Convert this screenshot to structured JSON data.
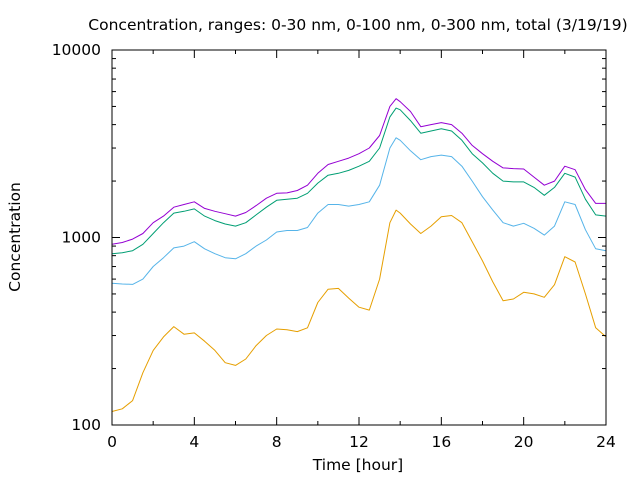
{
  "chart_data": {
    "type": "line",
    "title": "Concentration, ranges: 0-30 nm, 0-100 nm, 0-300 nm, total (3/19/19)",
    "xlabel": "Time [hour]",
    "ylabel": "Concentration",
    "xlim": [
      0,
      24
    ],
    "ylim": [
      100,
      10000
    ],
    "y_scale": "log",
    "x_ticks": [
      0,
      4,
      8,
      12,
      16,
      20,
      24
    ],
    "x_tick_labels": [
      "0",
      "4",
      "8",
      "12",
      "16",
      "20",
      "24"
    ],
    "y_major_ticks": [
      100,
      1000,
      10000
    ],
    "y_tick_labels": [
      "100",
      "1000",
      "10000"
    ],
    "grid": false,
    "legend": "none",
    "series": [
      {
        "color": "#e69f00",
        "points": [
          [
            0,
            118
          ],
          [
            0.5,
            122
          ],
          [
            1,
            135
          ],
          [
            1.5,
            190
          ],
          [
            2,
            250
          ],
          [
            2.5,
            295
          ],
          [
            3,
            335
          ],
          [
            3.5,
            305
          ],
          [
            4,
            310
          ],
          [
            4.5,
            280
          ],
          [
            5,
            250
          ],
          [
            5.5,
            215
          ],
          [
            6,
            208
          ],
          [
            6.5,
            225
          ],
          [
            7,
            265
          ],
          [
            7.5,
            300
          ],
          [
            8,
            325
          ],
          [
            8.5,
            322
          ],
          [
            9,
            315
          ],
          [
            9.5,
            330
          ],
          [
            10,
            450
          ],
          [
            10.5,
            530
          ],
          [
            11,
            535
          ],
          [
            11.5,
            475
          ],
          [
            12,
            425
          ],
          [
            12.5,
            410
          ],
          [
            13,
            600
          ],
          [
            13.5,
            1200
          ],
          [
            13.8,
            1400
          ],
          [
            14,
            1350
          ],
          [
            14.5,
            1180
          ],
          [
            15,
            1050
          ],
          [
            15.5,
            1150
          ],
          [
            16,
            1290
          ],
          [
            16.5,
            1310
          ],
          [
            17,
            1200
          ],
          [
            17.5,
            950
          ],
          [
            18,
            750
          ],
          [
            18.5,
            580
          ],
          [
            19,
            460
          ],
          [
            19.5,
            470
          ],
          [
            20,
            510
          ],
          [
            20.5,
            500
          ],
          [
            21,
            480
          ],
          [
            21.5,
            560
          ],
          [
            22,
            790
          ],
          [
            22.5,
            740
          ],
          [
            23,
            500
          ],
          [
            23.5,
            330
          ],
          [
            24,
            295
          ]
        ]
      },
      {
        "color": "#56b4e9",
        "points": [
          [
            0,
            570
          ],
          [
            0.5,
            565
          ],
          [
            1,
            562
          ],
          [
            1.5,
            600
          ],
          [
            2,
            700
          ],
          [
            2.5,
            780
          ],
          [
            3,
            880
          ],
          [
            3.5,
            900
          ],
          [
            4,
            950
          ],
          [
            4.5,
            870
          ],
          [
            5,
            820
          ],
          [
            5.5,
            780
          ],
          [
            6,
            770
          ],
          [
            6.5,
            820
          ],
          [
            7,
            900
          ],
          [
            7.5,
            970
          ],
          [
            8,
            1070
          ],
          [
            8.5,
            1090
          ],
          [
            9,
            1090
          ],
          [
            9.5,
            1130
          ],
          [
            10,
            1350
          ],
          [
            10.5,
            1500
          ],
          [
            11,
            1500
          ],
          [
            11.5,
            1470
          ],
          [
            12,
            1500
          ],
          [
            12.5,
            1550
          ],
          [
            13,
            1900
          ],
          [
            13.5,
            3000
          ],
          [
            13.8,
            3400
          ],
          [
            14,
            3300
          ],
          [
            14.5,
            2900
          ],
          [
            15,
            2600
          ],
          [
            15.5,
            2700
          ],
          [
            16,
            2750
          ],
          [
            16.5,
            2700
          ],
          [
            17,
            2400
          ],
          [
            17.5,
            2000
          ],
          [
            18,
            1650
          ],
          [
            18.5,
            1400
          ],
          [
            19,
            1200
          ],
          [
            19.5,
            1150
          ],
          [
            20,
            1190
          ],
          [
            20.5,
            1120
          ],
          [
            21,
            1030
          ],
          [
            21.5,
            1150
          ],
          [
            22,
            1550
          ],
          [
            22.5,
            1500
          ],
          [
            23,
            1100
          ],
          [
            23.5,
            870
          ],
          [
            24,
            850
          ]
        ]
      },
      {
        "color": "#009e73",
        "points": [
          [
            0,
            820
          ],
          [
            0.5,
            830
          ],
          [
            1,
            850
          ],
          [
            1.5,
            920
          ],
          [
            2,
            1050
          ],
          [
            2.5,
            1200
          ],
          [
            3,
            1350
          ],
          [
            3.5,
            1380
          ],
          [
            4,
            1420
          ],
          [
            4.5,
            1300
          ],
          [
            5,
            1230
          ],
          [
            5.5,
            1180
          ],
          [
            6,
            1150
          ],
          [
            6.5,
            1200
          ],
          [
            7,
            1320
          ],
          [
            7.5,
            1450
          ],
          [
            8,
            1580
          ],
          [
            8.5,
            1600
          ],
          [
            9,
            1620
          ],
          [
            9.5,
            1720
          ],
          [
            10,
            1950
          ],
          [
            10.5,
            2150
          ],
          [
            11,
            2200
          ],
          [
            11.5,
            2280
          ],
          [
            12,
            2400
          ],
          [
            12.5,
            2550
          ],
          [
            13,
            3000
          ],
          [
            13.5,
            4400
          ],
          [
            13.8,
            4900
          ],
          [
            14,
            4800
          ],
          [
            14.5,
            4200
          ],
          [
            15,
            3600
          ],
          [
            15.5,
            3700
          ],
          [
            16,
            3800
          ],
          [
            16.5,
            3700
          ],
          [
            17,
            3300
          ],
          [
            17.5,
            2800
          ],
          [
            18,
            2500
          ],
          [
            18.5,
            2200
          ],
          [
            19,
            2000
          ],
          [
            19.5,
            1980
          ],
          [
            20,
            1980
          ],
          [
            20.5,
            1850
          ],
          [
            21,
            1680
          ],
          [
            21.5,
            1850
          ],
          [
            22,
            2200
          ],
          [
            22.5,
            2100
          ],
          [
            23,
            1600
          ],
          [
            23.5,
            1320
          ],
          [
            24,
            1300
          ]
        ]
      },
      {
        "color": "#9400d3",
        "points": [
          [
            0,
            920
          ],
          [
            0.5,
            940
          ],
          [
            1,
            980
          ],
          [
            1.5,
            1050
          ],
          [
            2,
            1200
          ],
          [
            2.5,
            1300
          ],
          [
            3,
            1450
          ],
          [
            3.5,
            1500
          ],
          [
            4,
            1550
          ],
          [
            4.5,
            1430
          ],
          [
            5,
            1380
          ],
          [
            5.5,
            1340
          ],
          [
            6,
            1300
          ],
          [
            6.5,
            1360
          ],
          [
            7,
            1480
          ],
          [
            7.5,
            1620
          ],
          [
            8,
            1720
          ],
          [
            8.5,
            1730
          ],
          [
            9,
            1780
          ],
          [
            9.5,
            1900
          ],
          [
            10,
            2200
          ],
          [
            10.5,
            2450
          ],
          [
            11,
            2550
          ],
          [
            11.5,
            2650
          ],
          [
            12,
            2800
          ],
          [
            12.5,
            3000
          ],
          [
            13,
            3500
          ],
          [
            13.5,
            5000
          ],
          [
            13.8,
            5500
          ],
          [
            14,
            5300
          ],
          [
            14.5,
            4700
          ],
          [
            15,
            3900
          ],
          [
            15.5,
            4000
          ],
          [
            16,
            4100
          ],
          [
            16.5,
            4000
          ],
          [
            17,
            3600
          ],
          [
            17.5,
            3100
          ],
          [
            18,
            2800
          ],
          [
            18.5,
            2550
          ],
          [
            19,
            2350
          ],
          [
            19.5,
            2330
          ],
          [
            20,
            2320
          ],
          [
            20.5,
            2100
          ],
          [
            21,
            1900
          ],
          [
            21.5,
            2000
          ],
          [
            22,
            2400
          ],
          [
            22.5,
            2300
          ],
          [
            23,
            1800
          ],
          [
            23.5,
            1520
          ],
          [
            24,
            1520
          ]
        ]
      }
    ]
  }
}
